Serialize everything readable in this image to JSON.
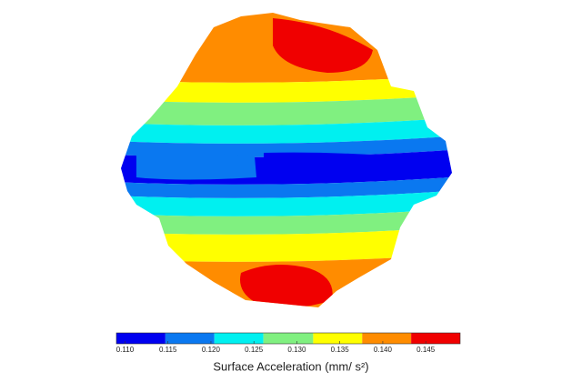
{
  "chart_data": {
    "type": "colormap",
    "label": "Surface Acceleration  (mm/ s²)",
    "clim": [
      0.109,
      0.149
    ],
    "bins": [
      0.109,
      0.1147,
      0.1204,
      0.1261,
      0.1319,
      0.1376,
      0.1433,
      0.149
    ],
    "colors": [
      "#0000f0",
      "#0a78f0",
      "#00f0f0",
      "#80f080",
      "#ffff00",
      "#ff8c00",
      "#f00000"
    ],
    "ticks": [
      {
        "value": 0.11,
        "label": "0.110"
      },
      {
        "value": 0.115,
        "label": "0.115"
      },
      {
        "value": 0.12,
        "label": "0.120"
      },
      {
        "value": 0.125,
        "label": "0.125"
      },
      {
        "value": 0.13,
        "label": "0.130"
      },
      {
        "value": 0.135,
        "label": "0.135"
      },
      {
        "value": 0.14,
        "label": "0.140"
      },
      {
        "value": 0.145,
        "label": "0.145"
      }
    ]
  }
}
